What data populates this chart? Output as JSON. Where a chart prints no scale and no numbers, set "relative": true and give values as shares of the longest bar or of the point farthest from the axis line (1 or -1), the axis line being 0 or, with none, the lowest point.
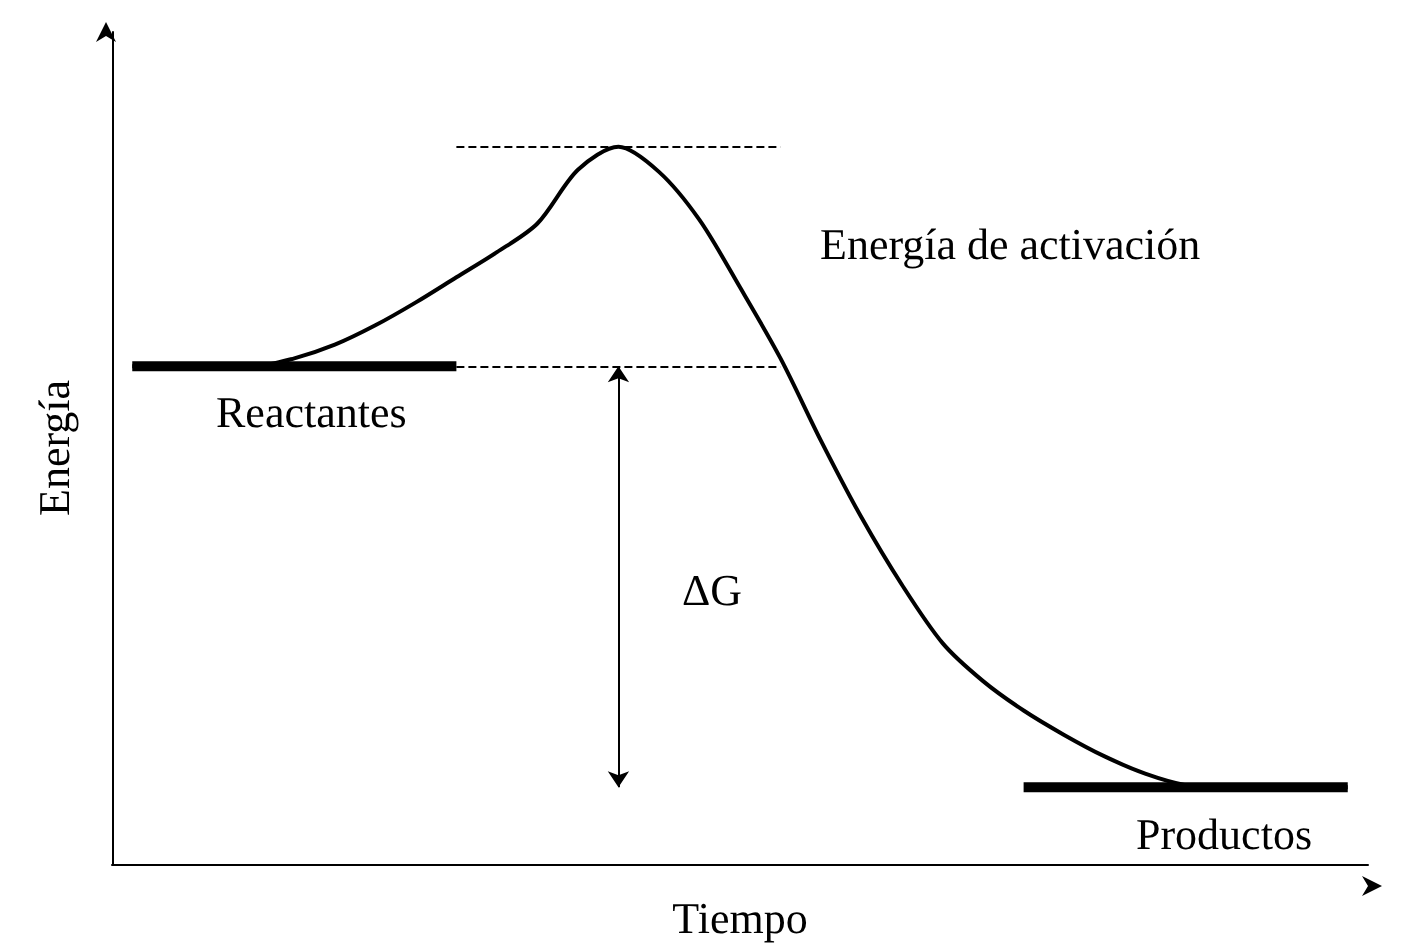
{
  "chart_data": {
    "type": "line",
    "relative": true,
    "xlabel": "Tiempo",
    "ylabel": "Energía",
    "line_style": "solid",
    "marker": "none",
    "categories": [
      null,
      null,
      null,
      null,
      null,
      null,
      null,
      null,
      null,
      null,
      null,
      null,
      null,
      null,
      null,
      null,
      null,
      null,
      null,
      null,
      null,
      null,
      null,
      null,
      null,
      null,
      null,
      null,
      null,
      null,
      null
    ],
    "series": [
      {
        "color": "#000000",
        "values": [
          0.694,
          0.694,
          0.694,
          0.694,
          0.705,
          0.724,
          0.751,
          0.783,
          0.818,
          0.853,
          0.893,
          0.968,
          1,
          0.965,
          0.898,
          0.804,
          0.705,
          0.59,
          0.483,
          0.389,
          0.308,
          0.255,
          0.214,
          0.18,
          0.15,
          0.126,
          0.11,
          0.107,
          0.107,
          0.107,
          0.107
        ]
      },
      {
        "color": "#000000",
        "values": [
          0.694,
          0.694,
          0.694,
          0.694,
          0.694,
          0.694,
          0.694,
          0.694,
          0.694,
          null,
          null,
          null,
          null,
          null,
          null,
          null,
          null,
          null,
          null,
          null,
          null,
          null,
          0.107,
          0.107,
          0.107,
          0.107,
          0.107,
          0.107,
          0.107,
          0.107,
          0.107
        ]
      }
    ],
    "ref_lines": [
      {
        "axis": "y",
        "value": 1,
        "line_style": "dashed",
        "color": "#000000"
      },
      {
        "axis": "y",
        "value": 0.694,
        "line_style": "dashed",
        "color": "#000000"
      }
    ],
    "annotations": [
      "Energía de activación",
      "ΔG",
      "Reactantes",
      "Productos"
    ]
  }
}
